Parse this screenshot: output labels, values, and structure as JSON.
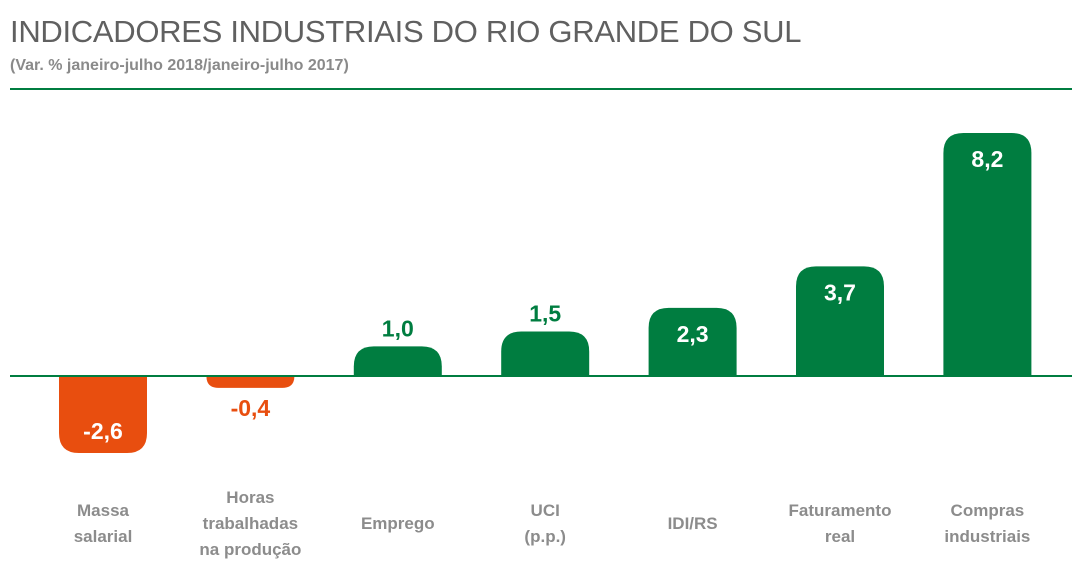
{
  "colors": {
    "positive": "#007d40",
    "negative": "#e84e0f",
    "rule": "#007d40",
    "axis": "#007d40",
    "category_text": "#8c8c8c"
  },
  "chart_data": {
    "type": "bar",
    "title": "INDICADORES INDUSTRIAIS DO RIO GRANDE DO SUL",
    "subtitle": "(Var. % janeiro-julho 2018/janeiro-julho 2017)",
    "categories": [
      [
        "Massa",
        "salarial"
      ],
      [
        "Horas",
        "trabalhadas",
        "na produção"
      ],
      [
        "Emprego"
      ],
      [
        "UCI",
        "(p.p.)"
      ],
      [
        "IDI/RS"
      ],
      [
        "Faturamento",
        "real"
      ],
      [
        "Compras",
        "industriais"
      ]
    ],
    "values": [
      -2.6,
      -0.4,
      1.0,
      1.5,
      2.3,
      3.7,
      8.2
    ],
    "value_labels": [
      "-2,6",
      "-0,4",
      "1,0",
      "1,5",
      "2,3",
      "3,7",
      "8,2"
    ],
    "ylim": [
      -2.6,
      8.2
    ],
    "grid": false,
    "legend": "none"
  }
}
